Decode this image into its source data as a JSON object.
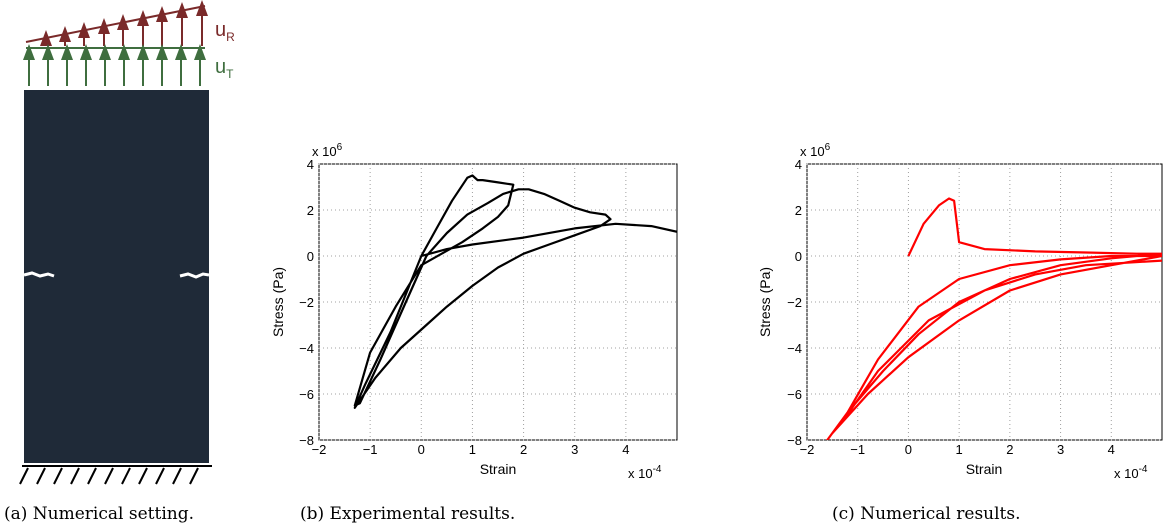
{
  "panel_a": {
    "label_R": "u",
    "label_R_sub": "R",
    "label_T": "u",
    "label_T_sub": "T",
    "caption": "(a) Numerical setting.",
    "colors": {
      "rotation_arrows": "#7a2a2a",
      "traction_arrows": "#3f6e3f",
      "specimen": "#1f2a38",
      "crack": "#ffffff"
    }
  },
  "chart_data": [
    {
      "type": "line",
      "caption": "(b) Experimental results.",
      "xlabel": "Strain",
      "ylabel": "Stress (Pa)",
      "x_multiplier": "x 10",
      "x_exponent": "-4",
      "y_multiplier": "x 10",
      "y_exponent": "6",
      "xlim": [
        -2,
        5
      ],
      "ylim": [
        -8,
        4
      ],
      "xticks": [
        -2,
        -1,
        0,
        1,
        2,
        3,
        4
      ],
      "yticks": [
        -8,
        -6,
        -4,
        -2,
        0,
        2,
        4
      ],
      "grid": true,
      "color": "#000000",
      "x": [
        0,
        0.3,
        0.6,
        0.9,
        1.0,
        1.1,
        1.2,
        1.5,
        1.8,
        1.7,
        1.5,
        1.2,
        0.8,
        0.4,
        0.0,
        -0.5,
        -1.0,
        -1.3,
        -1.2,
        -0.8,
        -0.3,
        0.1,
        0.5,
        0.9,
        1.3,
        1.6,
        1.9,
        2.1,
        2.4,
        2.7,
        3.0,
        3.3,
        3.6,
        3.7,
        3.5,
        3.0,
        2.5,
        2.0,
        1.5,
        1.0,
        0.5,
        0.1,
        -0.4,
        -0.9,
        -1.3,
        -1.1,
        -0.6,
        0.0,
        0.5,
        1.0,
        2.0,
        3.0,
        3.8,
        4.5,
        5.0
      ],
      "y": [
        0.0,
        1.2,
        2.4,
        3.4,
        3.5,
        3.3,
        3.3,
        3.2,
        3.1,
        2.2,
        1.7,
        1.2,
        0.6,
        0.1,
        -0.4,
        -2.2,
        -4.2,
        -6.5,
        -6.4,
        -4.5,
        -2.0,
        0.0,
        1.0,
        1.8,
        2.3,
        2.7,
        2.9,
        2.9,
        2.7,
        2.4,
        2.1,
        1.9,
        1.8,
        1.6,
        1.3,
        0.9,
        0.5,
        0.1,
        -0.5,
        -1.3,
        -2.2,
        -3.0,
        -4.0,
        -5.3,
        -6.6,
        -5.6,
        -3.3,
        0.0,
        0.3,
        0.5,
        0.8,
        1.2,
        1.4,
        1.3,
        1.05
      ]
    },
    {
      "type": "line",
      "caption": "(c) Numerical results.",
      "xlabel": "Strain",
      "ylabel": "Stress (Pa)",
      "x_multiplier": "x 10",
      "x_exponent": "-4",
      "y_multiplier": "x 10",
      "y_exponent": "6",
      "xlim": [
        -2,
        5
      ],
      "ylim": [
        -8,
        4
      ],
      "xticks": [
        -2,
        -1,
        0,
        1,
        2,
        3,
        4
      ],
      "yticks": [
        -8,
        -6,
        -4,
        -2,
        0,
        2,
        4
      ],
      "grid": true,
      "color": "#ff0000",
      "x": [
        0,
        0.3,
        0.6,
        0.8,
        0.9,
        0.95,
        1.0,
        1.5,
        2.5,
        3.5,
        4.5,
        5.0,
        4.0,
        3.0,
        2.0,
        1.0,
        0.2,
        -0.5,
        -1.2,
        -1.6,
        -1.2,
        -0.6,
        0.2,
        1.0,
        2.0,
        3.0,
        4.0,
        5.0,
        4.0,
        3.0,
        2.0,
        1.0,
        0.0,
        -0.8,
        -1.5,
        -1.3,
        -0.6,
        0.4,
        1.5,
        2.5,
        3.5,
        5.0
      ],
      "y": [
        0.0,
        1.4,
        2.2,
        2.5,
        2.4,
        1.5,
        0.6,
        0.3,
        0.2,
        0.15,
        0.1,
        0.1,
        -0.1,
        -0.4,
        -1.0,
        -2.0,
        -3.4,
        -5.0,
        -6.8,
        -8.0,
        -6.8,
        -4.5,
        -2.2,
        -1.0,
        -0.4,
        -0.15,
        0.0,
        0.0,
        -0.4,
        -0.8,
        -1.5,
        -2.8,
        -4.4,
        -6.0,
        -7.7,
        -7.2,
        -5.0,
        -2.8,
        -1.5,
        -0.8,
        -0.4,
        -0.2
      ]
    }
  ]
}
